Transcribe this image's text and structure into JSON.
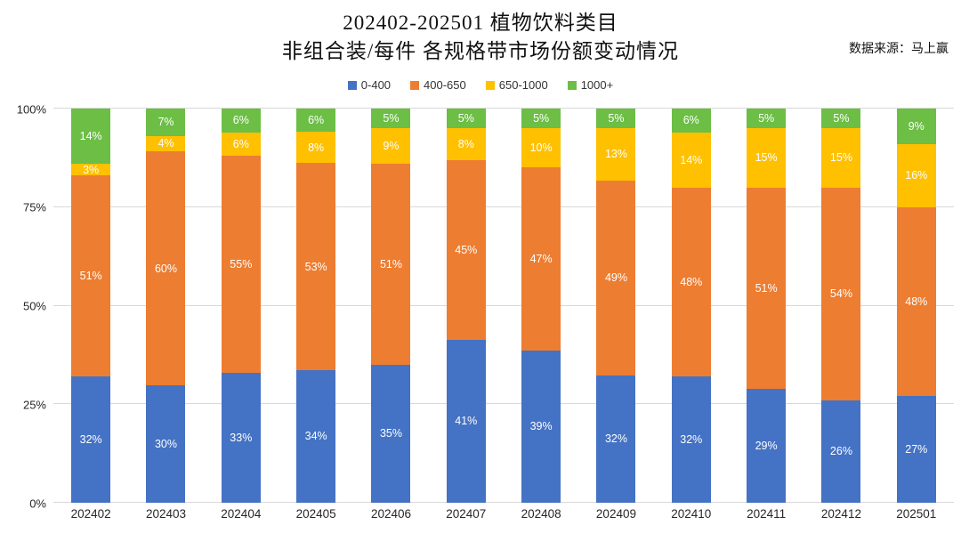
{
  "title": {
    "line1": "202402-202501 植物饮料类目",
    "line2": "非组合装/每件 各规格带市场份额变动情况"
  },
  "source_note": "数据来源：马上赢",
  "colors": {
    "blue": "#4472C4",
    "orange": "#ED7D31",
    "yellow": "#FFC000",
    "green": "#6CBE45",
    "grid": "#D9D9D9",
    "bar_label": "#FFFFFF",
    "axis_text": "#262626"
  },
  "chart_data": {
    "type": "bar",
    "stacked": true,
    "grid": true,
    "legend_position": "top",
    "value_suffix": "%",
    "ylim": [
      0,
      100
    ],
    "y_ticks": [
      {
        "value": 0,
        "label": "0%"
      },
      {
        "value": 25,
        "label": "25%"
      },
      {
        "value": 50,
        "label": "50%"
      },
      {
        "value": 75,
        "label": "75%"
      },
      {
        "value": 100,
        "label": "100%"
      }
    ],
    "categories": [
      "202402",
      "202403",
      "202404",
      "202405",
      "202406",
      "202407",
      "202408",
      "202409",
      "202410",
      "202411",
      "202412",
      "202501"
    ],
    "series": [
      {
        "name": "0-400",
        "color_key": "blue",
        "values": [
          32,
          30,
          33,
          34,
          35,
          41,
          39,
          32,
          32,
          29,
          26,
          27
        ]
      },
      {
        "name": "400-650",
        "color_key": "orange",
        "values": [
          51,
          60,
          55,
          53,
          51,
          45,
          47,
          49,
          48,
          51,
          54,
          48
        ]
      },
      {
        "name": "650-1000",
        "color_key": "yellow",
        "values": [
          3,
          4,
          6,
          8,
          9,
          8,
          10,
          13,
          14,
          15,
          15,
          16
        ]
      },
      {
        "name": "1000+",
        "color_key": "green",
        "values": [
          14,
          7,
          6,
          6,
          5,
          5,
          5,
          5,
          6,
          5,
          5,
          9
        ]
      }
    ]
  }
}
